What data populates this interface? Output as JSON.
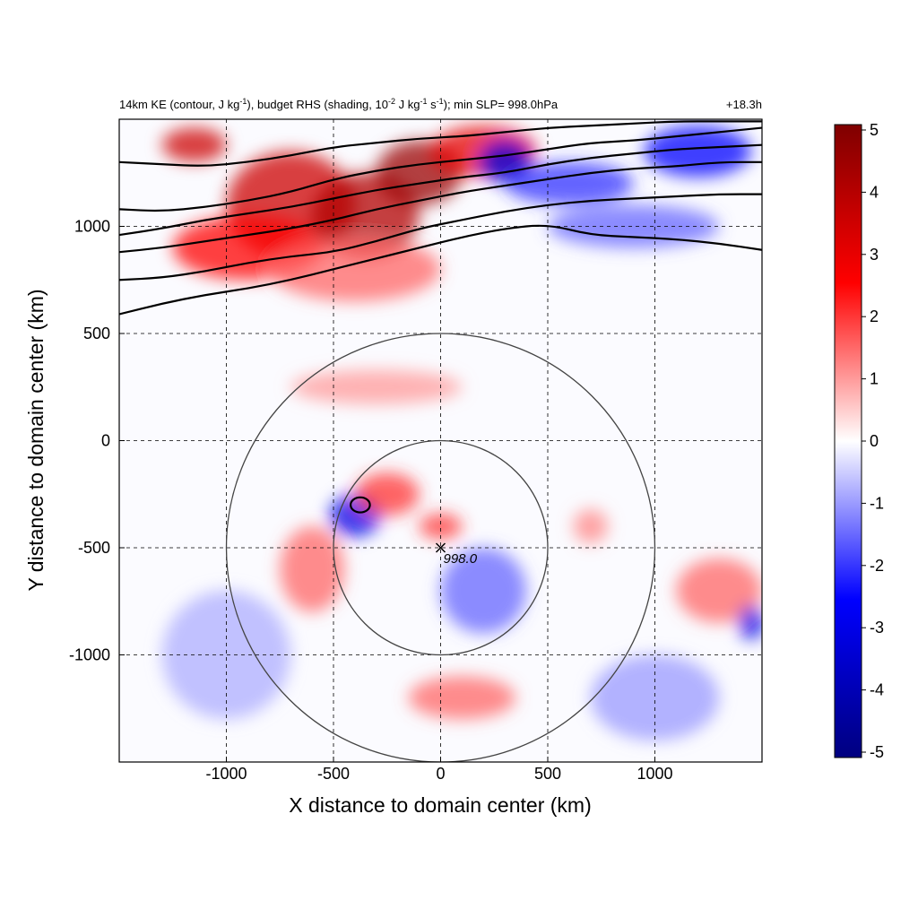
{
  "chart_data": {
    "type": "heatmap",
    "title": "14km KE (contour, J kg",
    "title_parts": {
      "a": "14km KE (contour, J kg",
      "a_sup": "-1",
      "b": "), budget RHS (shading, 10",
      "b_sup": "-2",
      "c": " J kg",
      "c_sup": "-1",
      "d": " s",
      "d_sup": "-1",
      "e": "); min SLP= 998.0hPa"
    },
    "time_label": "+18.3h",
    "xlabel": "X distance to domain center (km)",
    "ylabel": "Y distance to domain center (km)",
    "xlim": [
      -1500,
      1500
    ],
    "ylim": [
      -1500,
      1500
    ],
    "x_ticks": [
      -1000,
      -500,
      0,
      500,
      1000
    ],
    "x_tick_labels": [
      "-1000",
      "-500",
      "0",
      "500",
      "1000"
    ],
    "y_ticks": [
      1000,
      500,
      0,
      -500,
      -1000
    ],
    "y_tick_labels": [
      "1000",
      "500",
      "0",
      "-500",
      "-1000"
    ],
    "grid": true,
    "colorbar": {
      "min": -5,
      "max": 5,
      "ticks": [
        5,
        4,
        3,
        2,
        1,
        0,
        -1,
        -2,
        -3,
        -4,
        -5
      ],
      "tick_labels": [
        "5",
        "4",
        "3",
        "2",
        "1",
        "0",
        "-1",
        "-2",
        "-3",
        "-4",
        "-5"
      ],
      "colors": [
        "#00007f",
        "#0000ff",
        "#ffffff",
        "#ff0000",
        "#7f0000"
      ]
    },
    "center_marker": {
      "x": 0,
      "y": -500,
      "label": "998.0"
    },
    "range_circles_km": [
      500,
      1000
    ],
    "ke_contours": [
      {
        "points": [
          [
            -1500,
            590
          ],
          [
            -1300,
            640
          ],
          [
            -1100,
            680
          ],
          [
            -900,
            710
          ],
          [
            -700,
            750
          ],
          [
            -500,
            800
          ],
          [
            -300,
            850
          ],
          [
            -100,
            900
          ],
          [
            100,
            950
          ],
          [
            300,
            990
          ],
          [
            500,
            1010
          ],
          [
            700,
            960
          ],
          [
            900,
            950
          ],
          [
            1100,
            940
          ],
          [
            1300,
            920
          ],
          [
            1500,
            890
          ]
        ]
      },
      {
        "points": [
          [
            -1500,
            750
          ],
          [
            -1300,
            760
          ],
          [
            -1100,
            790
          ],
          [
            -900,
            830
          ],
          [
            -700,
            860
          ],
          [
            -500,
            880
          ],
          [
            -300,
            930
          ],
          [
            -100,
            990
          ],
          [
            100,
            1030
          ],
          [
            300,
            1070
          ],
          [
            500,
            1100
          ],
          [
            700,
            1120
          ],
          [
            900,
            1130
          ],
          [
            1100,
            1140
          ],
          [
            1300,
            1150
          ],
          [
            1500,
            1150
          ]
        ]
      },
      {
        "points": [
          [
            -1500,
            880
          ],
          [
            -1300,
            900
          ],
          [
            -1100,
            930
          ],
          [
            -900,
            960
          ],
          [
            -700,
            990
          ],
          [
            -500,
            1030
          ],
          [
            -300,
            1080
          ],
          [
            -100,
            1120
          ],
          [
            100,
            1160
          ],
          [
            300,
            1190
          ],
          [
            500,
            1220
          ],
          [
            700,
            1250
          ],
          [
            900,
            1270
          ],
          [
            1100,
            1280
          ],
          [
            1300,
            1300
          ],
          [
            1500,
            1300
          ]
        ]
      },
      {
        "points": [
          [
            -1500,
            960
          ],
          [
            -1300,
            990
          ],
          [
            -1100,
            1030
          ],
          [
            -900,
            1060
          ],
          [
            -700,
            1090
          ],
          [
            -500,
            1130
          ],
          [
            -300,
            1170
          ],
          [
            -100,
            1200
          ],
          [
            100,
            1230
          ],
          [
            300,
            1250
          ],
          [
            500,
            1290
          ],
          [
            700,
            1320
          ],
          [
            900,
            1340
          ],
          [
            1100,
            1360
          ],
          [
            1300,
            1370
          ],
          [
            1500,
            1380
          ]
        ]
      },
      {
        "points": [
          [
            -1500,
            1080
          ],
          [
            -1300,
            1070
          ],
          [
            -1100,
            1090
          ],
          [
            -900,
            1120
          ],
          [
            -700,
            1160
          ],
          [
            -500,
            1220
          ],
          [
            -300,
            1260
          ],
          [
            -100,
            1290
          ],
          [
            100,
            1310
          ],
          [
            300,
            1330
          ],
          [
            500,
            1360
          ],
          [
            700,
            1390
          ],
          [
            900,
            1400
          ],
          [
            1100,
            1420
          ],
          [
            1300,
            1440
          ],
          [
            1500,
            1460
          ]
        ]
      },
      {
        "points": [
          [
            -1500,
            1300
          ],
          [
            -1300,
            1290
          ],
          [
            -1100,
            1280
          ],
          [
            -900,
            1300
          ],
          [
            -700,
            1330
          ],
          [
            -500,
            1370
          ],
          [
            -300,
            1390
          ],
          [
            -100,
            1410
          ],
          [
            100,
            1420
          ],
          [
            300,
            1440
          ],
          [
            500,
            1460
          ],
          [
            700,
            1470
          ],
          [
            900,
            1480
          ],
          [
            1100,
            1490
          ],
          [
            1300,
            1490
          ],
          [
            1500,
            1490
          ]
        ]
      }
    ],
    "ke_closed_contour": {
      "cx": -375,
      "cy": -300,
      "rx": 45,
      "ry": 35
    },
    "field_features": [
      {
        "x": -700,
        "y": 1100,
        "value": 3.5,
        "rx": 300,
        "ry": 250
      },
      {
        "x": -350,
        "y": 1050,
        "value": 4.0,
        "rx": 250,
        "ry": 200
      },
      {
        "x": -100,
        "y": 1250,
        "value": 4.5,
        "rx": 200,
        "ry": 150
      },
      {
        "x": 200,
        "y": 1350,
        "value": 3.0,
        "rx": 250,
        "ry": 120
      },
      {
        "x": -1150,
        "y": 1380,
        "value": 3.5,
        "rx": 150,
        "ry": 80
      },
      {
        "x": -900,
        "y": 900,
        "value": 2.5,
        "rx": 350,
        "ry": 150
      },
      {
        "x": 300,
        "y": 1300,
        "value": -3.0,
        "rx": 120,
        "ry": 100
      },
      {
        "x": 600,
        "y": 1200,
        "value": -2.0,
        "rx": 300,
        "ry": 100
      },
      {
        "x": 1200,
        "y": 1350,
        "value": -2.5,
        "rx": 250,
        "ry": 120
      },
      {
        "x": 900,
        "y": 1000,
        "value": -1.5,
        "rx": 400,
        "ry": 100
      },
      {
        "x": -400,
        "y": 800,
        "value": 1.5,
        "rx": 400,
        "ry": 150
      },
      {
        "x": -400,
        "y": -350,
        "value": -3.0,
        "rx": 120,
        "ry": 100
      },
      {
        "x": -250,
        "y": -250,
        "value": 2.0,
        "rx": 150,
        "ry": 100
      },
      {
        "x": 0,
        "y": -400,
        "value": 2.0,
        "rx": 100,
        "ry": 60
      },
      {
        "x": -600,
        "y": -600,
        "value": 1.5,
        "rx": 150,
        "ry": 200
      },
      {
        "x": 200,
        "y": -700,
        "value": -1.5,
        "rx": 200,
        "ry": 200
      },
      {
        "x": 100,
        "y": -1200,
        "value": 1.5,
        "rx": 250,
        "ry": 100
      },
      {
        "x": 1300,
        "y": -700,
        "value": 1.5,
        "rx": 200,
        "ry": 150
      },
      {
        "x": 1450,
        "y": -850,
        "value": -3.0,
        "rx": 60,
        "ry": 80
      },
      {
        "x": 700,
        "y": -400,
        "value": 1.2,
        "rx": 80,
        "ry": 80
      },
      {
        "x": 1000,
        "y": -1200,
        "value": -1.0,
        "rx": 300,
        "ry": 200
      },
      {
        "x": -1000,
        "y": -1000,
        "value": -0.8,
        "rx": 300,
        "ry": 300
      },
      {
        "x": -300,
        "y": 250,
        "value": 1.0,
        "rx": 400,
        "ry": 80
      }
    ],
    "legend": "colorbar-right"
  }
}
